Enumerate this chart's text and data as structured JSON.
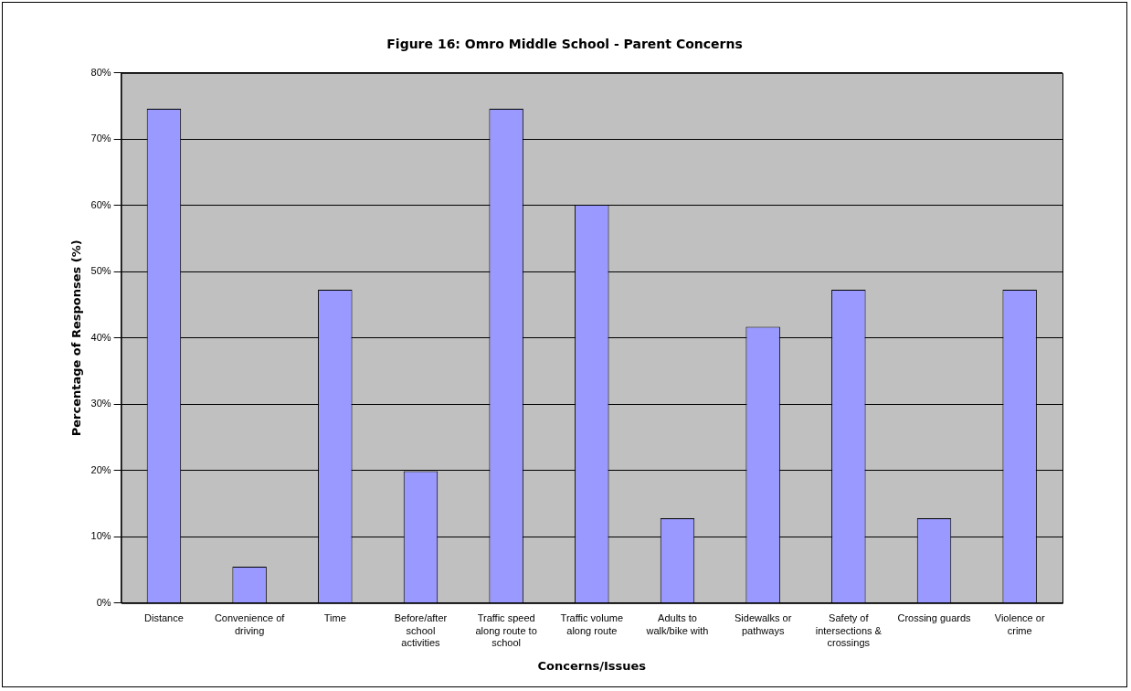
{
  "chart_data": {
    "type": "bar",
    "title": "Figure 16: Omro Middle School - Parent Concerns",
    "xlabel": "Concerns/Issues",
    "ylabel": "Percentage of Responses (%)",
    "categories": [
      "Distance",
      "Convenience of driving",
      "Time",
      "Before/after school activities",
      "Traffic speed along route to school",
      "Traffic volume along route",
      "Adults to walk/bike with",
      "Sidewalks or pathways",
      "Safety of intersections & crossings",
      "Crossing guards",
      "Violence or crime"
    ],
    "values": [
      74.6,
      5.5,
      47.3,
      19.9,
      74.6,
      60.1,
      12.8,
      41.7,
      47.3,
      12.8,
      47.3
    ],
    "color": "#9999ff",
    "ylim": [
      0,
      80
    ],
    "yticks": [
      {
        "value": 0,
        "label": "0%"
      },
      {
        "value": 10,
        "label": "10%"
      },
      {
        "value": 20,
        "label": "20%"
      },
      {
        "value": 30,
        "label": "30%"
      },
      {
        "value": 40,
        "label": "40%"
      },
      {
        "value": 50,
        "label": "50%"
      },
      {
        "value": 60,
        "label": "60%"
      },
      {
        "value": 70,
        "label": "70%"
      },
      {
        "value": 80,
        "label": "80%"
      }
    ],
    "grid": "y"
  }
}
